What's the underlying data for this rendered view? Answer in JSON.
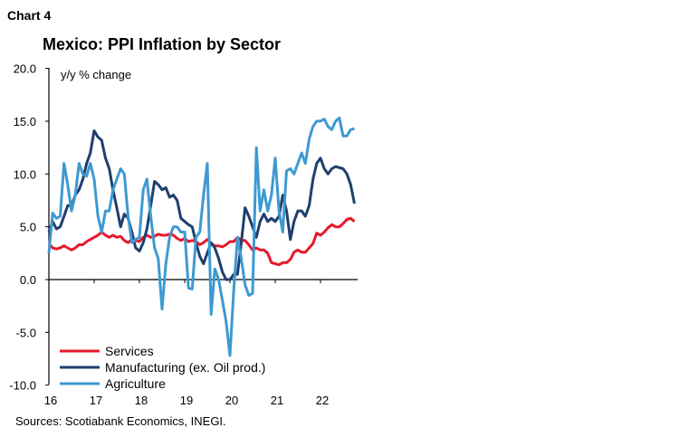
{
  "chart_label": "Chart 4",
  "chart_data": {
    "type": "line",
    "title": "Mexico: PPI Inflation by Sector",
    "ylabel": "y/y % change",
    "xlabel": "",
    "ylim": [
      -10,
      20
    ],
    "yticks": [
      "20.0",
      "15.0",
      "10.0",
      "5.0",
      "0.0",
      "-5.0",
      "-10.0"
    ],
    "ytick_values": [
      20,
      15,
      10,
      5,
      0,
      -5,
      -10
    ],
    "xticks": [
      "16",
      "17",
      "18",
      "19",
      "20",
      "21",
      "22"
    ],
    "x_start": "2016-01",
    "x_frequency": "monthly",
    "grid": false,
    "legend": "bottom-left",
    "series": [
      {
        "name": "Services",
        "color": "#e8192c",
        "values": [
          3.4,
          3.0,
          2.9,
          3.0,
          3.2,
          3.0,
          2.8,
          3.0,
          3.3,
          3.3,
          3.6,
          3.8,
          4.0,
          4.2,
          4.5,
          4.2,
          4.0,
          4.2,
          4.0,
          4.1,
          3.7,
          3.5,
          3.8,
          3.7,
          3.6,
          4.0,
          4.2,
          4.0,
          4.1,
          4.3,
          4.2,
          4.2,
          4.3,
          4.2,
          3.9,
          3.7,
          3.9,
          3.6,
          3.7,
          3.6,
          3.3,
          3.5,
          3.8,
          3.4,
          3.2,
          3.2,
          3.1,
          3.3,
          3.6,
          3.6,
          4.0,
          3.7,
          3.7,
          3.3,
          2.8,
          3.0,
          2.8,
          2.8,
          2.5,
          1.6,
          1.5,
          1.4,
          1.6,
          1.6,
          1.9,
          2.6,
          2.8,
          2.6,
          2.6,
          3.0,
          3.4,
          4.4,
          4.2,
          4.5,
          4.9,
          5.2,
          5.0,
          5.0,
          5.3,
          5.7,
          5.8,
          5.5
        ]
      },
      {
        "name": "Manufacturing (ex. Oil prod.)",
        "color": "#1f3f6e",
        "values": [
          4.5,
          5.5,
          4.8,
          5.0,
          6.0,
          7.0,
          7.0,
          8.0,
          8.5,
          9.5,
          11.0,
          12.0,
          14.1,
          13.5,
          13.2,
          11.5,
          10.5,
          8.5,
          6.8,
          5.0,
          6.2,
          5.8,
          4.5,
          3.0,
          2.7,
          3.5,
          4.8,
          7.0,
          9.3,
          9.0,
          8.5,
          8.7,
          7.8,
          8.0,
          7.5,
          5.8,
          5.5,
          5.2,
          5.0,
          3.5,
          2.2,
          1.5,
          2.5,
          3.5,
          3.0,
          2.0,
          0.7,
          0.0,
          0.0,
          0.5,
          0.5,
          3.5,
          6.8,
          6.0,
          5.0,
          4.0,
          5.5,
          6.2,
          5.5,
          5.8,
          5.5,
          6.0,
          8.0,
          6.5,
          3.8,
          5.5,
          6.5,
          6.5,
          6.0,
          7.0,
          9.5,
          11.0,
          11.5,
          10.5,
          10.0,
          10.5,
          10.7,
          10.6,
          10.5,
          10.0,
          9.0,
          7.2
        ]
      },
      {
        "name": "Agriculture",
        "color": "#3d9ad1",
        "values": [
          2.5,
          6.3,
          5.8,
          6.0,
          11.0,
          9.0,
          6.5,
          8.0,
          11.0,
          10.0,
          9.8,
          11.0,
          9.5,
          6.0,
          4.5,
          6.5,
          6.5,
          8.5,
          9.5,
          10.5,
          10.0,
          6.0,
          3.5,
          3.8,
          4.0,
          8.5,
          9.5,
          6.0,
          3.0,
          2.0,
          -2.8,
          1.5,
          4.0,
          5.0,
          5.0,
          4.5,
          4.5,
          -0.8,
          -0.9,
          4.0,
          4.5,
          8.0,
          11.0,
          -3.3,
          1.0,
          0.0,
          -2.0,
          -4.0,
          -7.2,
          -1.0,
          4.0,
          2.0,
          -0.5,
          -1.5,
          -1.3,
          12.5,
          6.5,
          8.5,
          6.5,
          8.0,
          11.5,
          6.5,
          4.5,
          10.3,
          10.5,
          10.0,
          11.0,
          12.0,
          11.0,
          13.3,
          14.5,
          15.0,
          15.0,
          15.2,
          14.5,
          14.2,
          15.0,
          15.3,
          13.6,
          13.6,
          14.2,
          14.3
        ]
      }
    ]
  },
  "source": "Sources: Scotiabank Economics, INEGI."
}
